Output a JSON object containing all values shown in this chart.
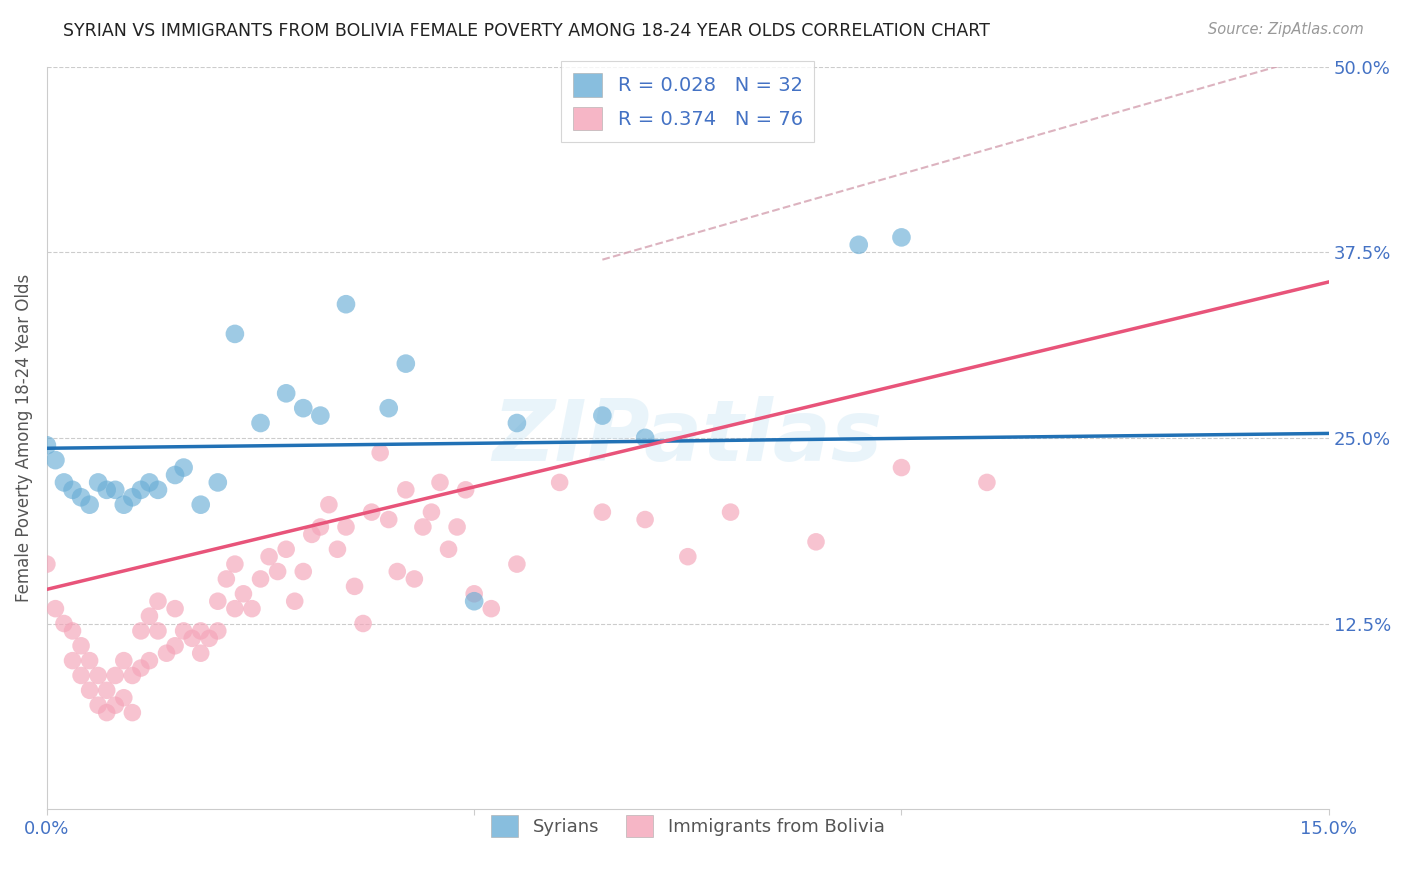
{
  "title": "SYRIAN VS IMMIGRANTS FROM BOLIVIA FEMALE POVERTY AMONG 18-24 YEAR OLDS CORRELATION CHART",
  "source": "Source: ZipAtlas.com",
  "ylabel": "Female Poverty Among 18-24 Year Olds",
  "xlabel_syrians": "Syrians",
  "xlabel_bolivia": "Immigrants from Bolivia",
  "xlim": [
    0.0,
    0.15
  ],
  "ylim": [
    0.0,
    0.5
  ],
  "grid_color": "#cccccc",
  "background_color": "#ffffff",
  "syrian_color": "#6baed6",
  "bolivia_color": "#f4a4b8",
  "syrian_line_color": "#2171b5",
  "bolivia_line_color": "#e8547a",
  "dashed_line_color": "#d4a0b0",
  "watermark": "ZIPatlas",
  "syrian_r": 0.028,
  "syria_n": 32,
  "bolivia_r": 0.374,
  "bolivia_n": 76,
  "syrian_x": [
    0.0,
    0.001,
    0.002,
    0.003,
    0.004,
    0.005,
    0.006,
    0.007,
    0.008,
    0.009,
    0.01,
    0.011,
    0.012,
    0.013,
    0.015,
    0.016,
    0.018,
    0.02,
    0.022,
    0.025,
    0.028,
    0.03,
    0.032,
    0.035,
    0.04,
    0.042,
    0.05,
    0.055,
    0.065,
    0.07,
    0.095,
    0.1
  ],
  "syrian_y": [
    0.245,
    0.235,
    0.22,
    0.215,
    0.21,
    0.205,
    0.22,
    0.215,
    0.215,
    0.205,
    0.21,
    0.215,
    0.22,
    0.215,
    0.225,
    0.23,
    0.205,
    0.22,
    0.32,
    0.26,
    0.28,
    0.27,
    0.265,
    0.34,
    0.27,
    0.3,
    0.14,
    0.26,
    0.265,
    0.25,
    0.38,
    0.385
  ],
  "bolivia_x": [
    0.0,
    0.001,
    0.002,
    0.003,
    0.003,
    0.004,
    0.004,
    0.005,
    0.005,
    0.006,
    0.006,
    0.007,
    0.007,
    0.008,
    0.008,
    0.009,
    0.009,
    0.01,
    0.01,
    0.011,
    0.011,
    0.012,
    0.012,
    0.013,
    0.013,
    0.014,
    0.015,
    0.015,
    0.016,
    0.017,
    0.018,
    0.018,
    0.019,
    0.02,
    0.02,
    0.021,
    0.022,
    0.022,
    0.023,
    0.024,
    0.025,
    0.026,
    0.027,
    0.028,
    0.029,
    0.03,
    0.031,
    0.032,
    0.033,
    0.034,
    0.035,
    0.036,
    0.037,
    0.038,
    0.039,
    0.04,
    0.041,
    0.042,
    0.043,
    0.044,
    0.045,
    0.046,
    0.047,
    0.048,
    0.049,
    0.05,
    0.052,
    0.055,
    0.06,
    0.065,
    0.07,
    0.075,
    0.08,
    0.09,
    0.1,
    0.11
  ],
  "bolivia_y": [
    0.165,
    0.135,
    0.125,
    0.1,
    0.12,
    0.09,
    0.11,
    0.08,
    0.1,
    0.07,
    0.09,
    0.065,
    0.08,
    0.07,
    0.09,
    0.075,
    0.1,
    0.065,
    0.09,
    0.12,
    0.095,
    0.13,
    0.1,
    0.14,
    0.12,
    0.105,
    0.135,
    0.11,
    0.12,
    0.115,
    0.105,
    0.12,
    0.115,
    0.14,
    0.12,
    0.155,
    0.135,
    0.165,
    0.145,
    0.135,
    0.155,
    0.17,
    0.16,
    0.175,
    0.14,
    0.16,
    0.185,
    0.19,
    0.205,
    0.175,
    0.19,
    0.15,
    0.125,
    0.2,
    0.24,
    0.195,
    0.16,
    0.215,
    0.155,
    0.19,
    0.2,
    0.22,
    0.175,
    0.19,
    0.215,
    0.145,
    0.135,
    0.165,
    0.22,
    0.2,
    0.195,
    0.17,
    0.2,
    0.18,
    0.23,
    0.22
  ],
  "syrian_line_x": [
    0.0,
    0.15
  ],
  "syrian_line_y": [
    0.243,
    0.253
  ],
  "bolivia_line_x": [
    0.0,
    0.15
  ],
  "bolivia_line_y": [
    0.148,
    0.355
  ],
  "dashed_line_x": [
    0.065,
    0.15
  ],
  "dashed_line_y": [
    0.37,
    0.51
  ]
}
